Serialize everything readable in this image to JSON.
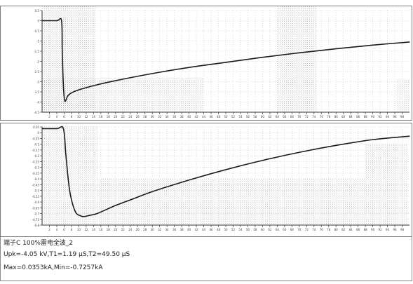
{
  "chart_data": [
    {
      "type": "line",
      "title": "",
      "xlabel": "",
      "ylabel": "",
      "xlim": [
        0,
        100
      ],
      "ylim": [
        -4.5,
        0.5
      ],
      "grid": true,
      "x_ticks": [
        2,
        4,
        6,
        8,
        10,
        12,
        14,
        16,
        18,
        20,
        22,
        24,
        26,
        28,
        30,
        32,
        34,
        36,
        38,
        40,
        42,
        44,
        46,
        48,
        50,
        52,
        54,
        56,
        58,
        60,
        62,
        64,
        66,
        68,
        70,
        72,
        74,
        76,
        78,
        80,
        82,
        84,
        86,
        88,
        90,
        92,
        94,
        96,
        98
      ],
      "y_ticks": [
        0.5,
        0,
        -0.5,
        -1,
        -1.5,
        -2,
        -2.5,
        -3,
        -3.5,
        -4,
        -4.5
      ],
      "series": [
        {
          "color": "#1a1a1a",
          "x": [
            0,
            4,
            5.3,
            5.5,
            5.8,
            6.2,
            7,
            8,
            10,
            15,
            20,
            30,
            40,
            50,
            60,
            70,
            80,
            90,
            100
          ],
          "y": [
            0,
            0,
            0,
            -1.5,
            -3.2,
            -3.95,
            -3.7,
            -3.55,
            -3.4,
            -3.15,
            -2.95,
            -2.6,
            -2.3,
            -2.05,
            -1.8,
            -1.58,
            -1.38,
            -1.2,
            -1.05
          ]
        }
      ]
    },
    {
      "type": "line",
      "title": "",
      "xlabel": "",
      "ylabel": "",
      "xlim": [
        0,
        100
      ],
      "ylim": [
        -0.8,
        0.05
      ],
      "grid": true,
      "x_ticks": [
        2,
        4,
        6,
        8,
        10,
        12,
        14,
        16,
        18,
        20,
        22,
        24,
        26,
        28,
        30,
        32,
        34,
        36,
        38,
        40,
        42,
        44,
        46,
        48,
        50,
        52,
        54,
        56,
        58,
        60,
        62,
        64,
        66,
        68,
        70,
        72,
        74,
        76,
        78,
        80,
        82,
        84,
        86,
        88,
        90,
        92,
        94,
        96,
        98
      ],
      "y_ticks": [
        0.05,
        0,
        -0.05,
        -0.1,
        -0.15,
        -0.2,
        -0.25,
        -0.3,
        -0.35,
        -0.4,
        -0.45,
        -0.5,
        -0.55,
        -0.6,
        -0.65,
        -0.7,
        -0.75,
        -0.8
      ],
      "series": [
        {
          "color": "#1a1a1a",
          "x": [
            0,
            4,
            5.8,
            6.5,
            7.5,
            9,
            10.5,
            11.5,
            13,
            15,
            20,
            25,
            30,
            40,
            50,
            60,
            70,
            80,
            90,
            100
          ],
          "y": [
            0.0353,
            0.0353,
            0.0353,
            -0.2,
            -0.5,
            -0.68,
            -0.72,
            -0.7257,
            -0.715,
            -0.7,
            -0.63,
            -0.57,
            -0.51,
            -0.41,
            -0.32,
            -0.24,
            -0.17,
            -0.11,
            -0.06,
            -0.03
          ]
        }
      ]
    }
  ],
  "info": {
    "line1": "端子C 100%雷电全波_2",
    "line2": "Upk=-4.05 kV,T1=1.19 μS,T2=49.50 μS",
    "line3": "Max=0.0353kA,Min=-0.7257kA"
  }
}
